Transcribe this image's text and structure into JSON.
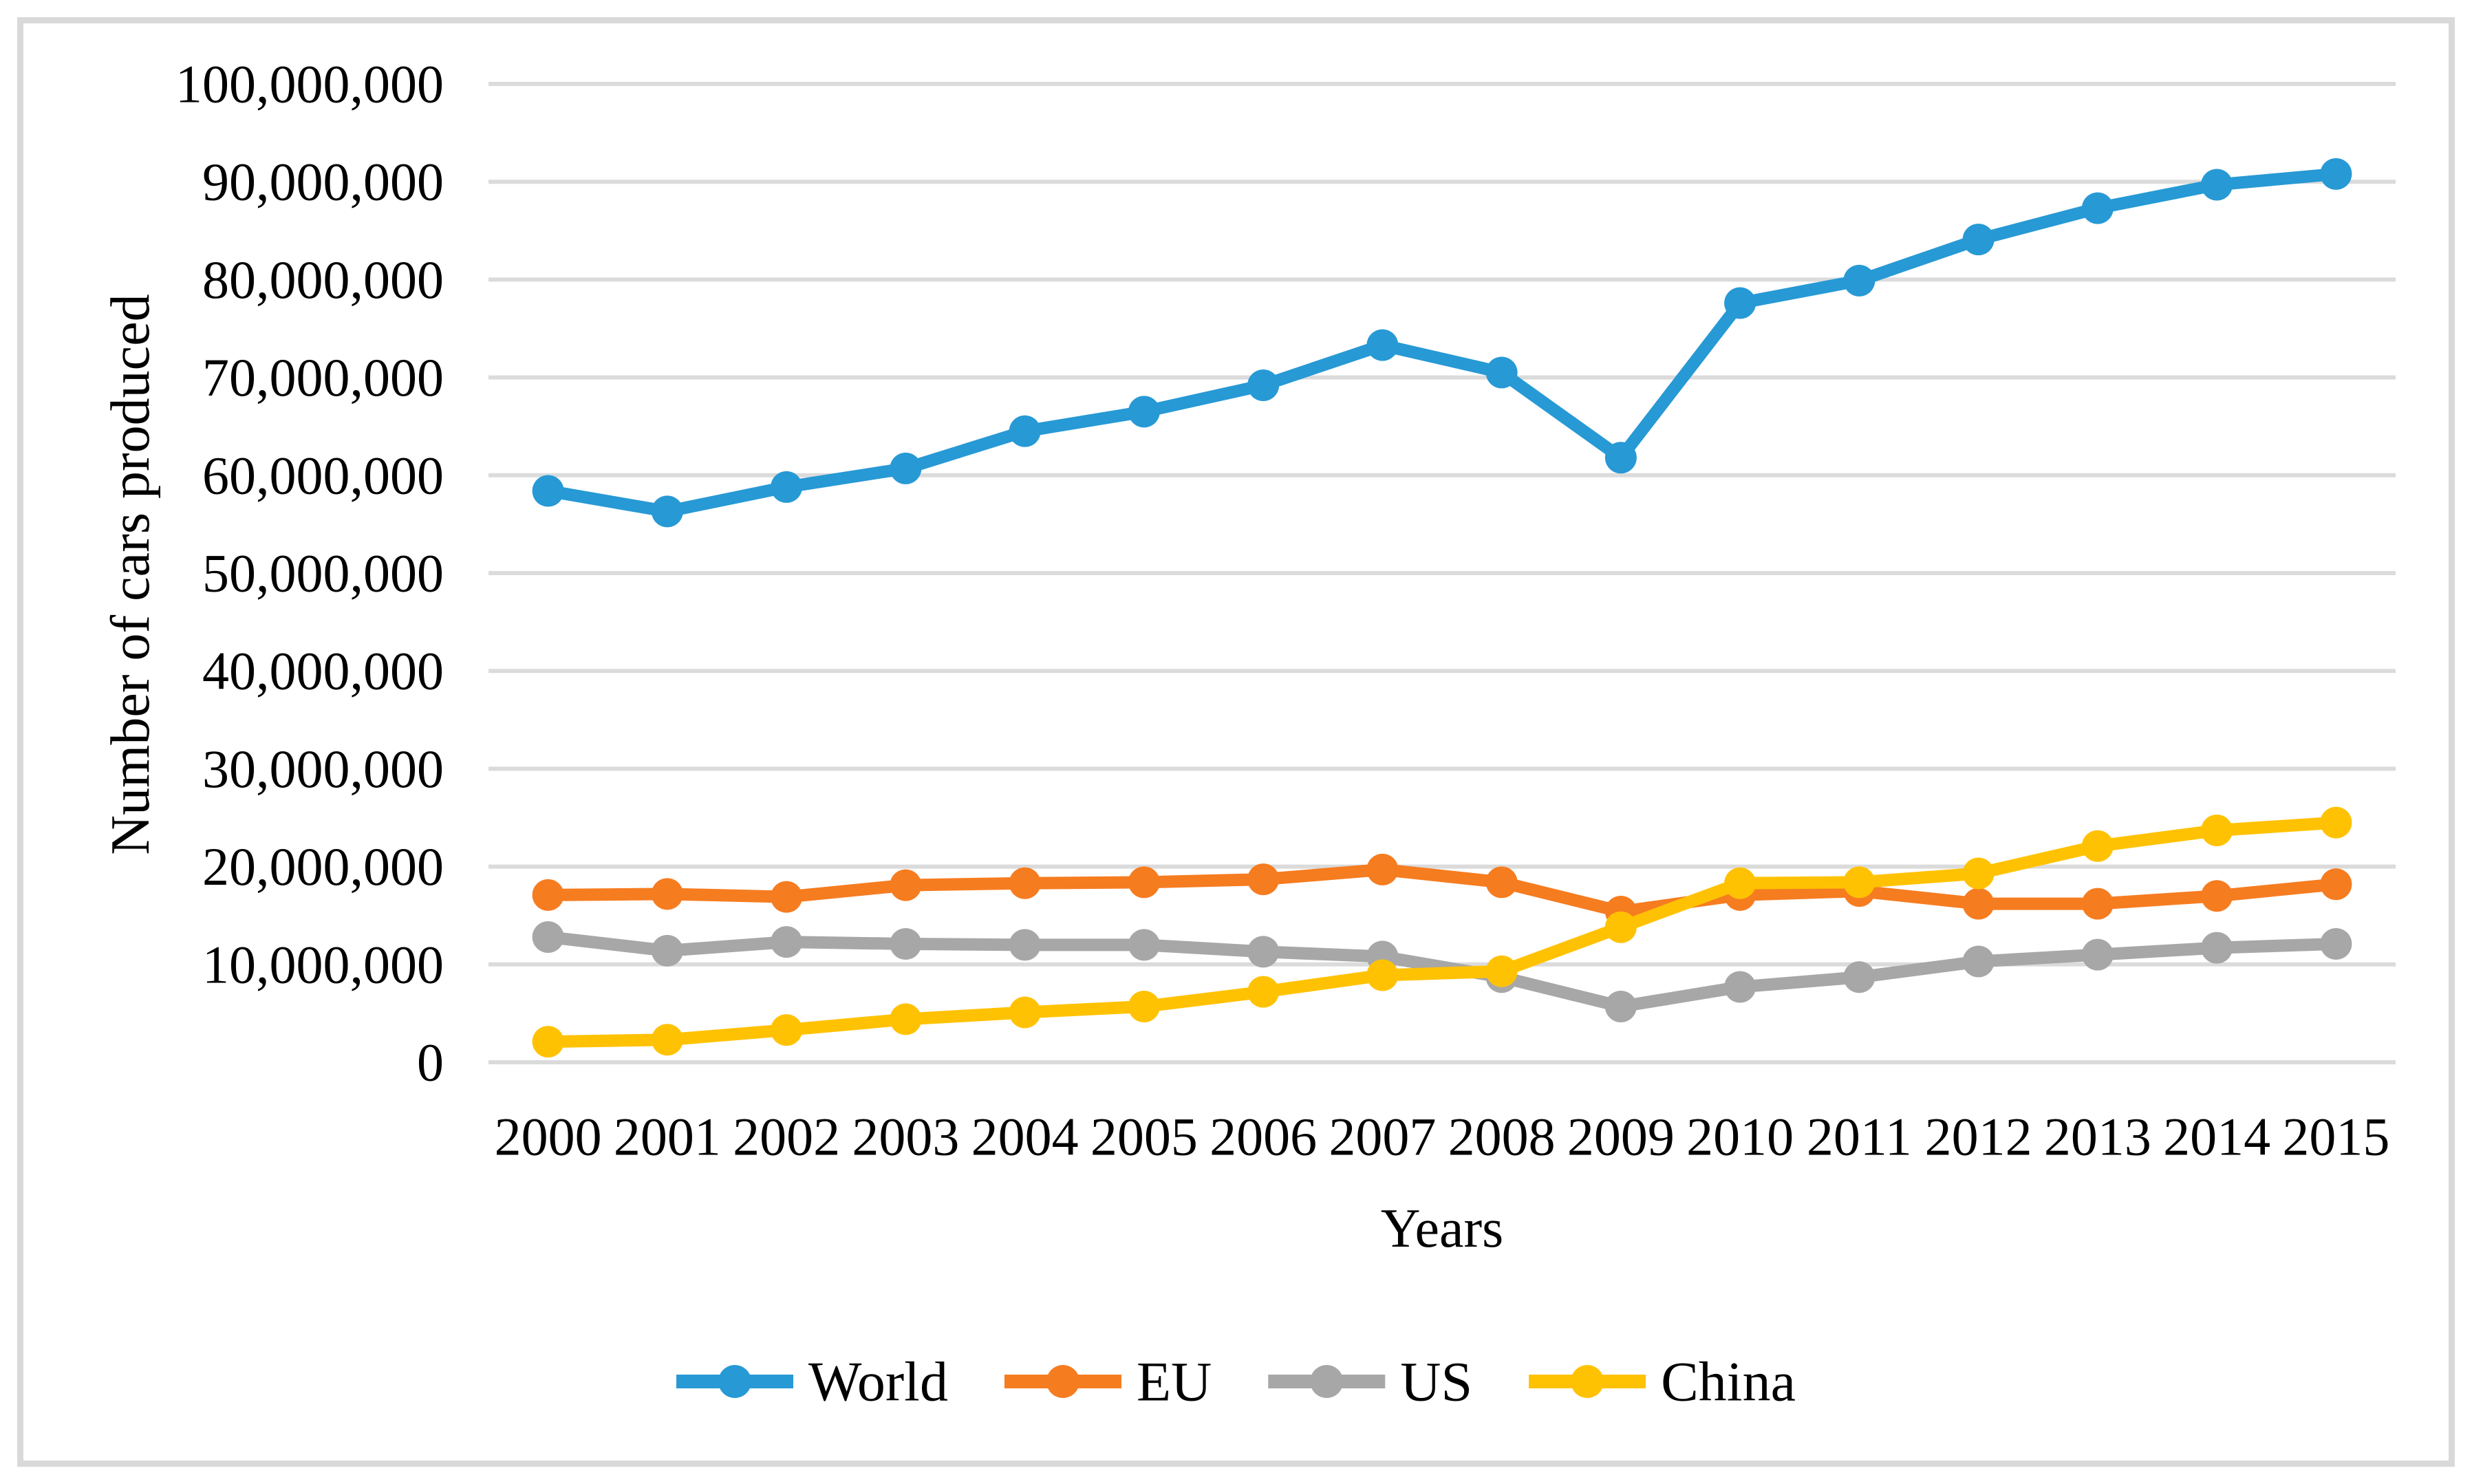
{
  "figure": {
    "background": "#FFFFFF",
    "border_color": "#D9D9D9"
  },
  "chart_data": {
    "type": "line",
    "title": "",
    "xlabel": "Years",
    "ylabel": "Number of cars produced",
    "x_labels": [
      "2000",
      "2001",
      "2002",
      "2003",
      "2004",
      "2005",
      "2006",
      "2007",
      "2008",
      "2009",
      "2010",
      "2011",
      "2012",
      "2013",
      "2014",
      "2015"
    ],
    "ylim": [
      0,
      100000000
    ],
    "ytick_step": 10000000,
    "ytick_labels": [
      "0",
      "10,000,000",
      "20,000,000",
      "30,000,000",
      "40,000,000",
      "50,000,000",
      "60,000,000",
      "70,000,000",
      "80,000,000",
      "90,000,000",
      "100,000,000"
    ],
    "grid": "horizontal-only",
    "gridline_color": "#DBDBDB",
    "legend_position": "bottom-center",
    "marker": "circle",
    "series": [
      {
        "name": "World",
        "color": "#2799D5",
        "values": [
          58400000,
          56300000,
          58800000,
          60700000,
          64500000,
          66500000,
          69200000,
          73300000,
          70500000,
          61800000,
          77600000,
          79900000,
          84100000,
          87300000,
          89700000,
          90800000
        ]
      },
      {
        "name": "EU",
        "color": "#F67C20",
        "values": [
          17100000,
          17200000,
          16900000,
          18100000,
          18300000,
          18400000,
          18700000,
          19700000,
          18400000,
          15400000,
          17100000,
          17500000,
          16200000,
          16200000,
          17000000,
          18200000
        ]
      },
      {
        "name": "US",
        "color": "#A7A7A7",
        "values": [
          12800000,
          11400000,
          12300000,
          12100000,
          12000000,
          12000000,
          11300000,
          10800000,
          8700000,
          5700000,
          7700000,
          8700000,
          10300000,
          11000000,
          11700000,
          12100000
        ]
      },
      {
        "name": "China",
        "color": "#FFC203",
        "values": [
          2100000,
          2300000,
          3300000,
          4400000,
          5100000,
          5700000,
          7200000,
          8900000,
          9300000,
          13800000,
          18300000,
          18400000,
          19300000,
          22100000,
          23700000,
          24500000
        ]
      }
    ]
  }
}
